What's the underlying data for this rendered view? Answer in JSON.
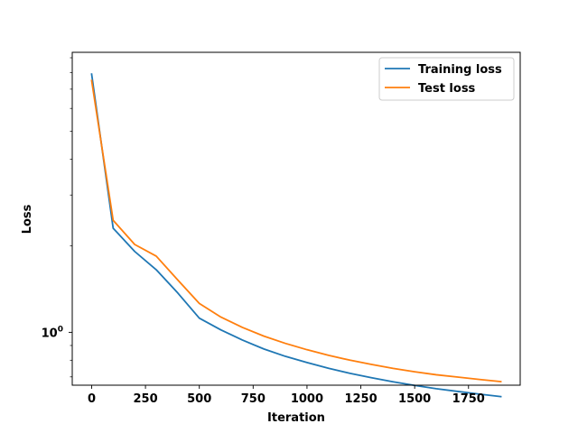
{
  "chart_data": {
    "type": "line",
    "title": "",
    "xlabel": "Iteration",
    "ylabel": "Loss",
    "xlim": [
      -90,
      1990
    ],
    "ylim": [
      0.655,
      9.4
    ],
    "yscale": "log",
    "grid": false,
    "legend_position": "upper right",
    "x_ticks": [
      {
        "value": 0,
        "label": "0"
      },
      {
        "value": 250,
        "label": "250"
      },
      {
        "value": 500,
        "label": "500"
      },
      {
        "value": 750,
        "label": "750"
      },
      {
        "value": 1000,
        "label": "1000"
      },
      {
        "value": 1250,
        "label": "1250"
      },
      {
        "value": 1500,
        "label": "1500"
      },
      {
        "value": 1750,
        "label": "1750"
      }
    ],
    "y_ticks": [
      {
        "value": 1.0,
        "label_base": "10",
        "label_exp": "0"
      }
    ],
    "series": [
      {
        "name": "Training loss",
        "color": "#1f77b4",
        "x": [
          0,
          100,
          200,
          300,
          400,
          500,
          600,
          700,
          800,
          900,
          1000,
          1100,
          1200,
          1300,
          1400,
          1500,
          1600,
          1700,
          1800,
          1900
        ],
        "y": [
          7.9,
          2.3,
          1.91,
          1.65,
          1.37,
          1.12,
          1.02,
          0.94,
          0.875,
          0.825,
          0.785,
          0.75,
          0.72,
          0.695,
          0.673,
          0.654,
          0.637,
          0.623,
          0.61,
          0.598
        ]
      },
      {
        "name": "Test loss",
        "color": "#ff7f0e",
        "x": [
          0,
          100,
          200,
          300,
          400,
          500,
          600,
          700,
          800,
          900,
          1000,
          1100,
          1200,
          1300,
          1400,
          1500,
          1600,
          1700,
          1800,
          1900
        ],
        "y": [
          7.5,
          2.45,
          2.02,
          1.84,
          1.52,
          1.26,
          1.13,
          1.04,
          0.97,
          0.915,
          0.87,
          0.832,
          0.8,
          0.773,
          0.749,
          0.729,
          0.712,
          0.699,
          0.686,
          0.674
        ]
      }
    ]
  }
}
